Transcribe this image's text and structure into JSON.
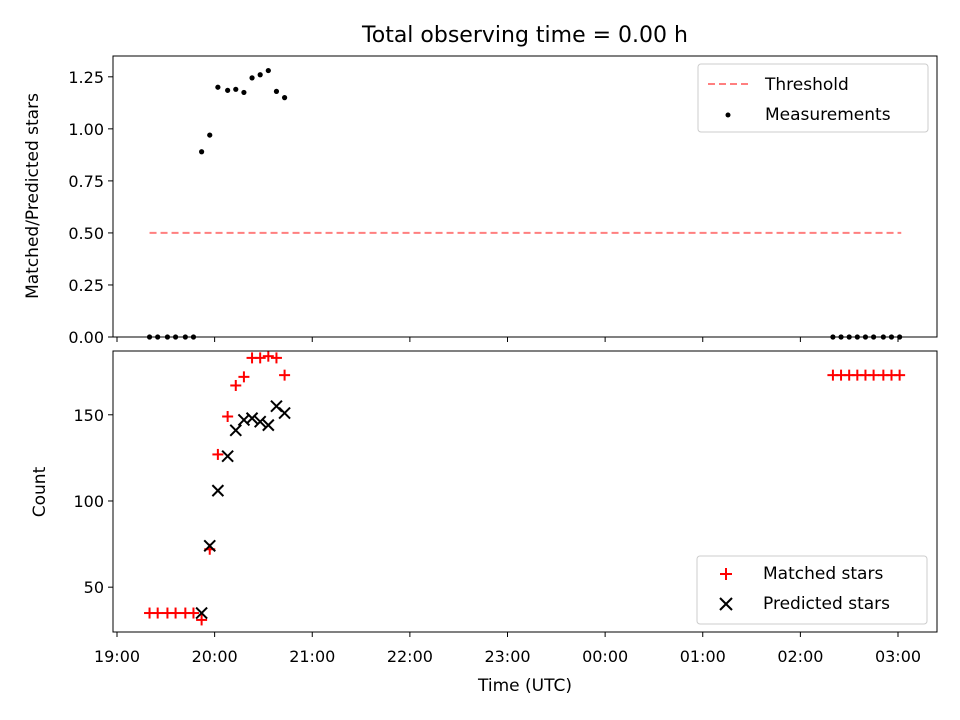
{
  "figure": {
    "title": "Total observing time = 0.00 h"
  },
  "chart_data": [
    {
      "type": "scatter",
      "title": "Total observing time = 0.00 h",
      "xlabel": "",
      "ylabel": "Matched/Predicted stars",
      "x_axis": "time",
      "xlim": [
        "19:00",
        "03:00"
      ],
      "ylim": [
        0,
        1.35
      ],
      "yticks": [
        "0.00",
        "0.25",
        "0.50",
        "0.75",
        "1.00",
        "1.25"
      ],
      "legend": {
        "position": "upper right",
        "entries": [
          "Threshold",
          "Measurements"
        ]
      },
      "grid": false,
      "series": [
        {
          "name": "Threshold",
          "kind": "dashed-line",
          "color": "#ff7f7f",
          "points": [
            [
              "19:20",
              0.5
            ],
            [
              "03:02",
              0.5
            ]
          ]
        },
        {
          "name": "Measurements",
          "kind": "scatter",
          "color": "#000000",
          "points": [
            [
              "19:20",
              0.0
            ],
            [
              "19:25",
              0.0
            ],
            [
              "19:31",
              0.0
            ],
            [
              "19:36",
              0.0
            ],
            [
              "19:42",
              0.0
            ],
            [
              "19:47",
              0.0
            ],
            [
              "19:52",
              0.89
            ],
            [
              "19:57",
              0.97
            ],
            [
              "20:02",
              1.2
            ],
            [
              "20:08",
              1.185
            ],
            [
              "20:13",
              1.19
            ],
            [
              "20:18",
              1.175
            ],
            [
              "20:23",
              1.245
            ],
            [
              "20:28",
              1.26
            ],
            [
              "20:33",
              1.28
            ],
            [
              "20:38",
              1.18
            ],
            [
              "20:43",
              1.15
            ],
            [
              "02:20",
              0.0
            ],
            [
              "02:25",
              0.0
            ],
            [
              "02:30",
              0.0
            ],
            [
              "02:35",
              0.0
            ],
            [
              "02:40",
              0.0
            ],
            [
              "02:45",
              0.0
            ],
            [
              "02:51",
              0.0
            ],
            [
              "02:56",
              0.0
            ],
            [
              "03:01",
              0.0
            ]
          ]
        }
      ]
    },
    {
      "type": "scatter",
      "xlabel": "Time (UTC)",
      "ylabel": "Count",
      "x_axis": "time",
      "xlim": [
        "19:00",
        "03:00"
      ],
      "ylim": [
        24,
        187
      ],
      "xticks": [
        "19:00",
        "20:00",
        "21:00",
        "22:00",
        "23:00",
        "00:00",
        "01:00",
        "02:00",
        "03:00"
      ],
      "yticks": [
        "50",
        "100",
        "150"
      ],
      "legend": {
        "position": "lower right",
        "entries": [
          "Matched stars",
          "Predicted stars"
        ]
      },
      "grid": false,
      "series": [
        {
          "name": "Matched stars",
          "marker": "plus",
          "color": "#ff0000",
          "points": [
            [
              "19:20",
              35
            ],
            [
              "19:25",
              35
            ],
            [
              "19:31",
              35
            ],
            [
              "19:36",
              35
            ],
            [
              "19:42",
              35
            ],
            [
              "19:47",
              35
            ],
            [
              "19:52",
              31
            ],
            [
              "19:57",
              72
            ],
            [
              "20:02",
              127
            ],
            [
              "20:08",
              149
            ],
            [
              "20:13",
              167
            ],
            [
              "20:18",
              172
            ],
            [
              "20:23",
              183
            ],
            [
              "20:28",
              183
            ],
            [
              "20:33",
              184
            ],
            [
              "20:38",
              183
            ],
            [
              "20:43",
              173
            ],
            [
              "02:20",
              173
            ],
            [
              "02:25",
              173
            ],
            [
              "02:30",
              173
            ],
            [
              "02:35",
              173
            ],
            [
              "02:40",
              173
            ],
            [
              "02:45",
              173
            ],
            [
              "02:51",
              173
            ],
            [
              "02:56",
              173
            ],
            [
              "03:01",
              173
            ]
          ]
        },
        {
          "name": "Predicted stars",
          "marker": "x",
          "color": "#000000",
          "points": [
            [
              "19:52",
              35
            ],
            [
              "19:57",
              74
            ],
            [
              "20:02",
              106
            ],
            [
              "20:08",
              126
            ],
            [
              "20:13",
              141
            ],
            [
              "20:18",
              147
            ],
            [
              "20:23",
              148
            ],
            [
              "20:28",
              146
            ],
            [
              "20:33",
              144
            ],
            [
              "20:38",
              155
            ],
            [
              "20:43",
              151
            ]
          ]
        }
      ]
    }
  ]
}
